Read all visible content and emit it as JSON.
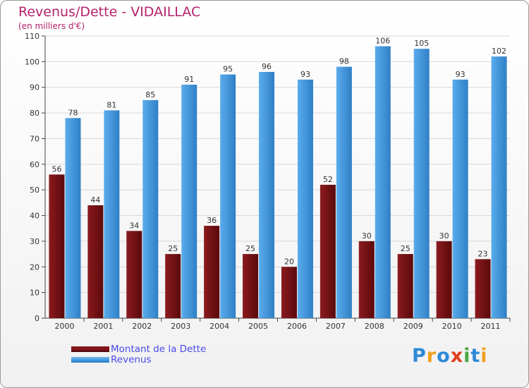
{
  "header": {
    "title": "Revenus/Dette - VIDAILLAC",
    "subtitle": "(en milliers d'€)"
  },
  "logo": {
    "text": "Proxiti",
    "letters": [
      {
        "ch": "P",
        "color": "#2e8ad8"
      },
      {
        "ch": "r",
        "color": "#f0a020"
      },
      {
        "ch": "o",
        "color": "#2e8ad8"
      },
      {
        "ch": "x",
        "color": "#e04020"
      },
      {
        "ch": "i",
        "color": "#49a844"
      },
      {
        "ch": "t",
        "color": "#2e8ad8"
      },
      {
        "ch": "i",
        "color": "#f0a020"
      }
    ]
  },
  "colors": {
    "dette": "#7a1418",
    "revenus": "#3f95dc",
    "grid": "#d8d8d8",
    "axis": "#444444"
  },
  "chart_data": {
    "type": "bar",
    "title": "Revenus/Dette - VIDAILLAC",
    "subtitle": "(en milliers d'€)",
    "xlabel": "",
    "ylabel": "",
    "ylim": [
      0,
      110
    ],
    "yticks": [
      0,
      10,
      20,
      30,
      40,
      50,
      60,
      70,
      80,
      90,
      100,
      110
    ],
    "grid": true,
    "legend_position": "bottom-left",
    "categories": [
      "2000",
      "2001",
      "2002",
      "2003",
      "2004",
      "2005",
      "2006",
      "2007",
      "2008",
      "2009",
      "2010",
      "2011"
    ],
    "series": [
      {
        "name": "Montant de la Dette",
        "values": [
          56,
          44,
          34,
          25,
          36,
          25,
          20,
          52,
          30,
          25,
          30,
          23
        ]
      },
      {
        "name": "Revenus",
        "values": [
          78,
          81,
          85,
          91,
          95,
          96,
          93,
          98,
          106,
          105,
          93,
          102
        ]
      }
    ]
  }
}
